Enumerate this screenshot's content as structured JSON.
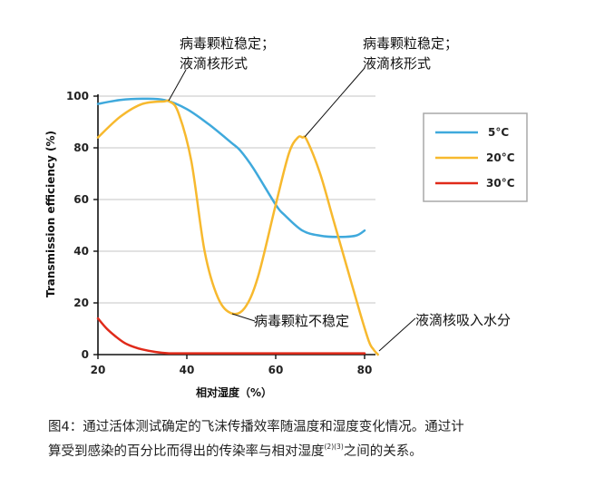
{
  "chart_data": {
    "type": "line",
    "xlabel": "相对湿度（%）",
    "ylabel": "Transmission efficiency (%)",
    "xlim": [
      20,
      83
    ],
    "ylim": [
      0,
      100
    ],
    "xticks": [
      20,
      40,
      60,
      80
    ],
    "yticks": [
      0,
      20,
      40,
      60,
      80,
      100
    ],
    "grid": true,
    "legend_position": "right",
    "series": [
      {
        "name": "5°C",
        "color": "#3fa9dc",
        "x": [
          20,
          25,
          30,
          35,
          40,
          45,
          50,
          52,
          55,
          60,
          62,
          66,
          70,
          74,
          78,
          80
        ],
        "y": [
          97,
          98.5,
          99,
          98.5,
          95,
          89,
          82,
          79,
          72,
          58,
          54,
          48,
          46,
          45.5,
          46,
          48
        ]
      },
      {
        "name": "20°C",
        "color": "#f7b92e",
        "x": [
          20,
          25,
          30,
          35,
          36,
          38,
          41,
          44,
          47,
          50,
          53,
          56,
          60,
          63,
          65,
          66,
          67,
          70,
          73,
          76,
          79,
          81,
          82,
          83
        ],
        "y": [
          84,
          92,
          97,
          98,
          98,
          94,
          75,
          40,
          22,
          16,
          18,
          30,
          58,
          78,
          84,
          84,
          83,
          70,
          52,
          34,
          16,
          5,
          2,
          0
        ]
      },
      {
        "name": "30°C",
        "color": "#e02a1a",
        "x": [
          20,
          22,
          24,
          26,
          28,
          30,
          33,
          36,
          40,
          60,
          80
        ],
        "y": [
          14,
          10,
          7,
          4.5,
          3,
          2,
          1,
          0.5,
          0.5,
          0.5,
          0.5
        ]
      }
    ],
    "annotations": [
      {
        "lines": [
          "病毒颗粒稳定；",
          "液滴核形式"
        ],
        "target": [
          36,
          98
        ]
      },
      {
        "lines": [
          "病毒颗粒稳定；",
          "液滴核形式"
        ],
        "target": [
          66,
          84
        ]
      },
      {
        "lines": [
          "病毒颗粒不稳定"
        ],
        "target": [
          50,
          16
        ]
      },
      {
        "lines": [
          "液滴核吸入水分"
        ],
        "target": [
          83,
          0
        ]
      }
    ]
  },
  "caption": {
    "line1": "图4：通过活体测试确定的飞沫传播效率随温度和湿度变化情况。通过计",
    "line2_before": "算受到感染的百分比而得出的传染率与相对湿度",
    "line2_sup": "(2)(3)",
    "line2_after": "之间的关系。"
  }
}
